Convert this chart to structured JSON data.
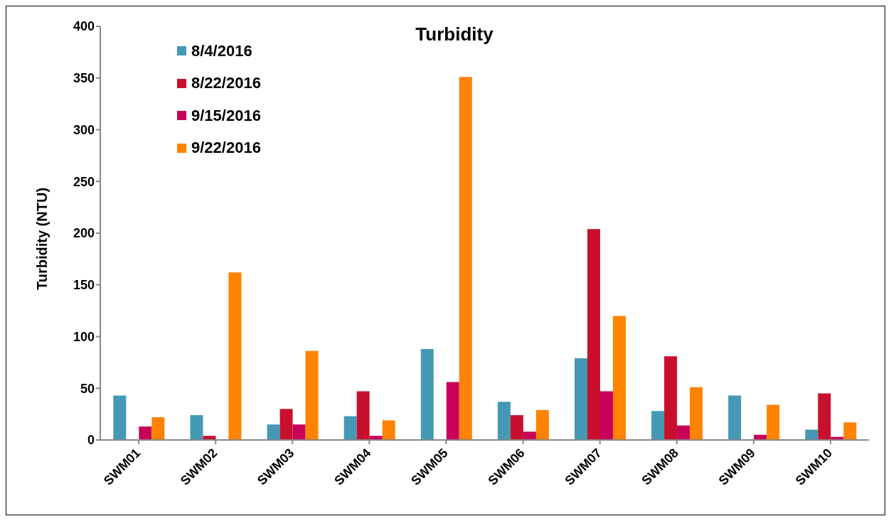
{
  "chart_data": {
    "type": "bar",
    "title": "Turbidity",
    "ylabel": "Turbidity (NTU)",
    "categories": [
      "SWM01",
      "SWM02",
      "SWM03",
      "SWM04",
      "SWM05",
      "SWM06",
      "SWM07",
      "SWM08",
      "SWM09",
      "SWM10"
    ],
    "series": [
      {
        "name": "8/4/2016",
        "color": "#4599b5",
        "values": [
          43,
          24,
          15,
          23,
          88,
          37,
          79,
          28,
          43,
          10
        ]
      },
      {
        "name": "8/22/2016",
        "color": "#c8102e",
        "values": [
          null,
          4,
          30,
          47,
          null,
          24,
          204,
          81,
          null,
          45
        ]
      },
      {
        "name": "9/15/2016",
        "color": "#c8005a",
        "values": [
          13,
          null,
          15,
          4,
          56,
          8,
          47,
          14,
          5,
          3
        ]
      },
      {
        "name": "9/22/2016",
        "color": "#ff8200",
        "values": [
          22,
          162,
          86,
          19,
          351,
          29,
          120,
          51,
          34,
          17
        ]
      }
    ],
    "ylim": [
      0,
      400
    ],
    "yticks": [
      0,
      50,
      100,
      150,
      200,
      250,
      300,
      350,
      400
    ],
    "grid": false,
    "legend": "top left"
  }
}
